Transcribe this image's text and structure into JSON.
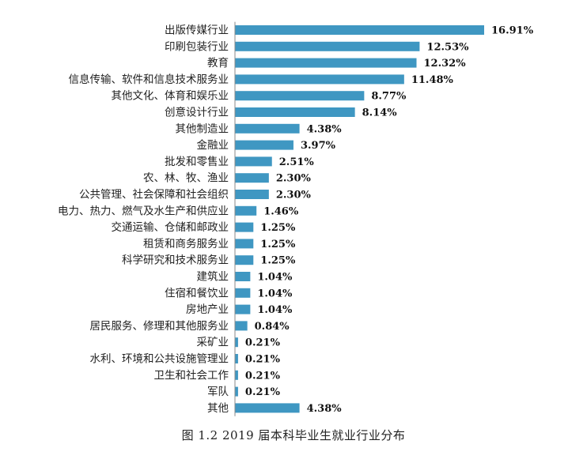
{
  "chart_data": {
    "type": "bar",
    "orientation": "horizontal",
    "categories": [
      "出版传媒行业",
      "印刷包装行业",
      "教育",
      "信息传输、软件和信息技术服务业",
      "其他文化、体育和娱乐业",
      "创意设计行业",
      "其他制造业",
      "金融业",
      "批发和零售业",
      "农、林、牧、渔业",
      "公共管理、社会保障和社会组织",
      "电力、热力、燃气及水生产和供应业",
      "交通运输、仓储和邮政业",
      "租赁和商务服务业",
      "科学研究和技术服务业",
      "建筑业",
      "住宿和餐饮业",
      "房地产业",
      "居民服务、修理和其他服务业",
      "采矿业",
      "水利、环境和公共设施管理业",
      "卫生和社会工作",
      "军队",
      "其他"
    ],
    "values": [
      16.91,
      12.53,
      12.32,
      11.48,
      8.77,
      8.14,
      4.38,
      3.97,
      2.51,
      2.3,
      2.3,
      1.46,
      1.25,
      1.25,
      1.25,
      1.04,
      1.04,
      1.04,
      0.84,
      0.21,
      0.21,
      0.21,
      0.21,
      4.38
    ],
    "value_labels": [
      "16.91%",
      "12.53%",
      "12.32%",
      "11.48%",
      "8.77%",
      "8.14%",
      "4.38%",
      "3.97%",
      "2.51%",
      "2.30%",
      "2.30%",
      "1.46%",
      "1.25%",
      "1.25%",
      "1.25%",
      "1.04%",
      "1.04%",
      "1.04%",
      "0.84%",
      "0.21%",
      "0.21%",
      "0.21%",
      "0.21%",
      "4.38%"
    ],
    "bar_color": "#3f97c2",
    "unit": "%",
    "xlim": [
      0,
      16.91
    ],
    "grid": false,
    "legend": "none"
  },
  "caption": "图 1.2 2019 届本科毕业生就业行业分布"
}
